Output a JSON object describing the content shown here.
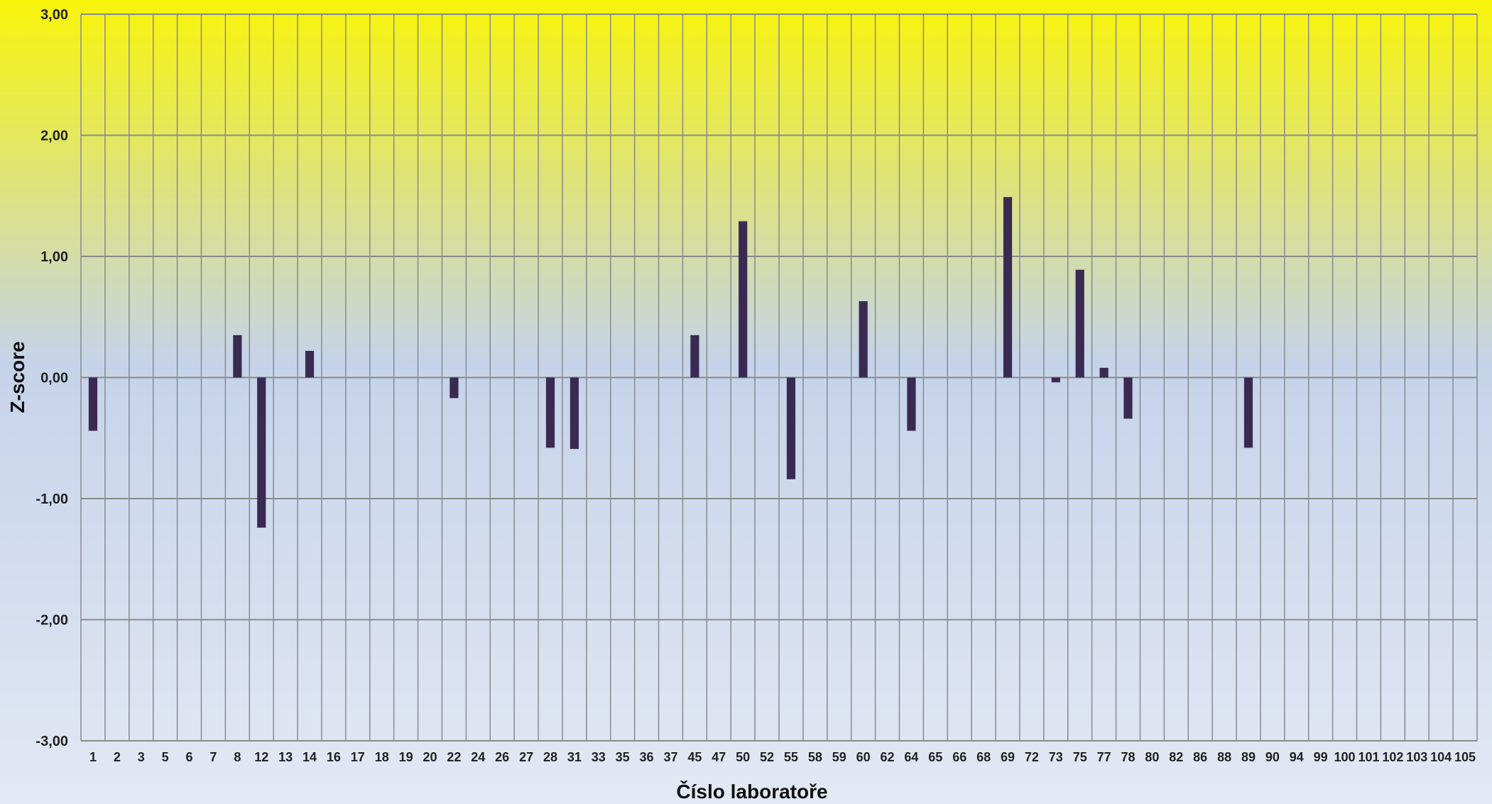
{
  "chart_data": {
    "type": "bar",
    "title": "",
    "xlabel": "Číslo laboratoře",
    "ylabel": "Z-score",
    "ylim": [
      -3,
      3
    ],
    "yticks": [
      "-3,00",
      "-2,00",
      "-1,00",
      "0,00",
      "1,00",
      "2,00",
      "3,00"
    ],
    "grid": true,
    "legend": "none",
    "categories": [
      "1",
      "2",
      "3",
      "5",
      "6",
      "7",
      "8",
      "12",
      "13",
      "14",
      "16",
      "17",
      "18",
      "19",
      "20",
      "22",
      "24",
      "26",
      "27",
      "28",
      "31",
      "33",
      "35",
      "36",
      "37",
      "45",
      "47",
      "50",
      "52",
      "55",
      "58",
      "59",
      "60",
      "62",
      "64",
      "65",
      "66",
      "68",
      "69",
      "72",
      "73",
      "75",
      "77",
      "78",
      "80",
      "82",
      "86",
      "88",
      "89",
      "90",
      "94",
      "99",
      "100",
      "101",
      "102",
      "103",
      "104",
      "105"
    ],
    "values": [
      -0.44,
      null,
      null,
      null,
      null,
      null,
      0.35,
      -1.24,
      null,
      0.22,
      null,
      null,
      null,
      null,
      null,
      -0.17,
      null,
      null,
      null,
      -0.58,
      -0.59,
      null,
      null,
      null,
      null,
      0.35,
      null,
      1.29,
      null,
      -0.84,
      null,
      null,
      0.63,
      null,
      -0.44,
      null,
      null,
      null,
      1.49,
      null,
      -0.04,
      0.89,
      0.08,
      -0.34,
      null,
      null,
      null,
      null,
      -0.58,
      null,
      null,
      null,
      null,
      null,
      null,
      null,
      null,
      null
    ]
  },
  "colors": {
    "bar": "#3a2a52",
    "grid": "#8a8a8a",
    "background_top": "#f8f40a",
    "background_mid": "#c5d3ea",
    "background_bottom": "#e3e8f4"
  }
}
